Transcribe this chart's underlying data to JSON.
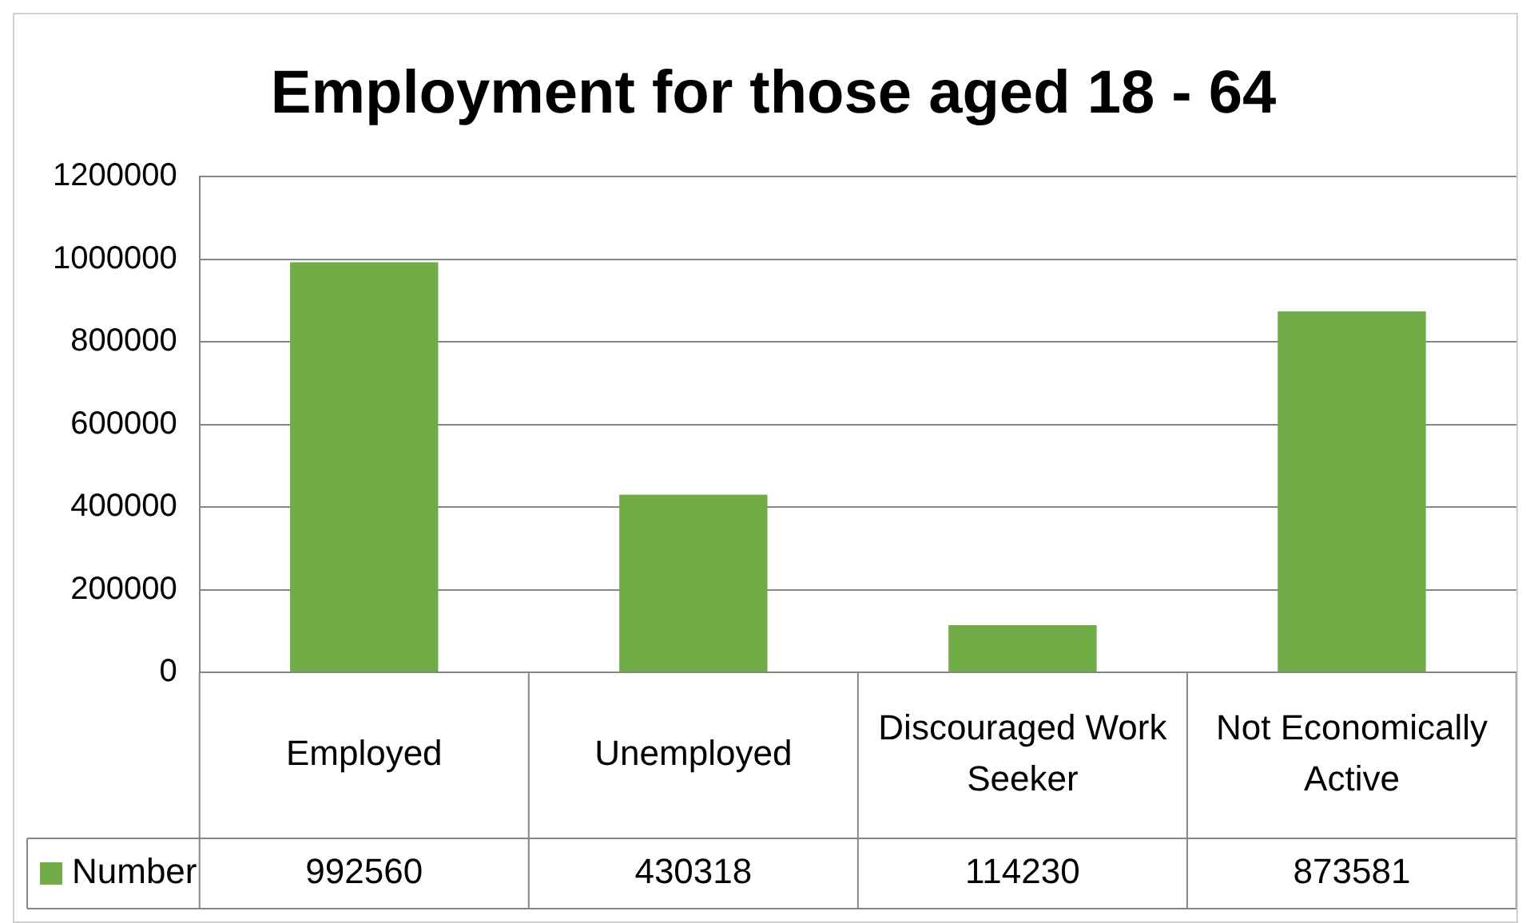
{
  "chart_data": {
    "type": "bar",
    "title": "Employment for those aged 18 - 64",
    "categories": [
      "Employed",
      "Unemployed",
      "Discouraged Work Seeker",
      "Not Economically Active"
    ],
    "series": [
      {
        "name": "Number",
        "color": "#70ad47",
        "values": [
          992560,
          430318,
          114230,
          873581
        ]
      }
    ],
    "ylim": [
      0,
      1200000
    ],
    "yticks": [
      0,
      200000,
      400000,
      600000,
      800000,
      1000000,
      1200000
    ],
    "grid": "y",
    "legend": "bottom",
    "data_labels": true
  }
}
